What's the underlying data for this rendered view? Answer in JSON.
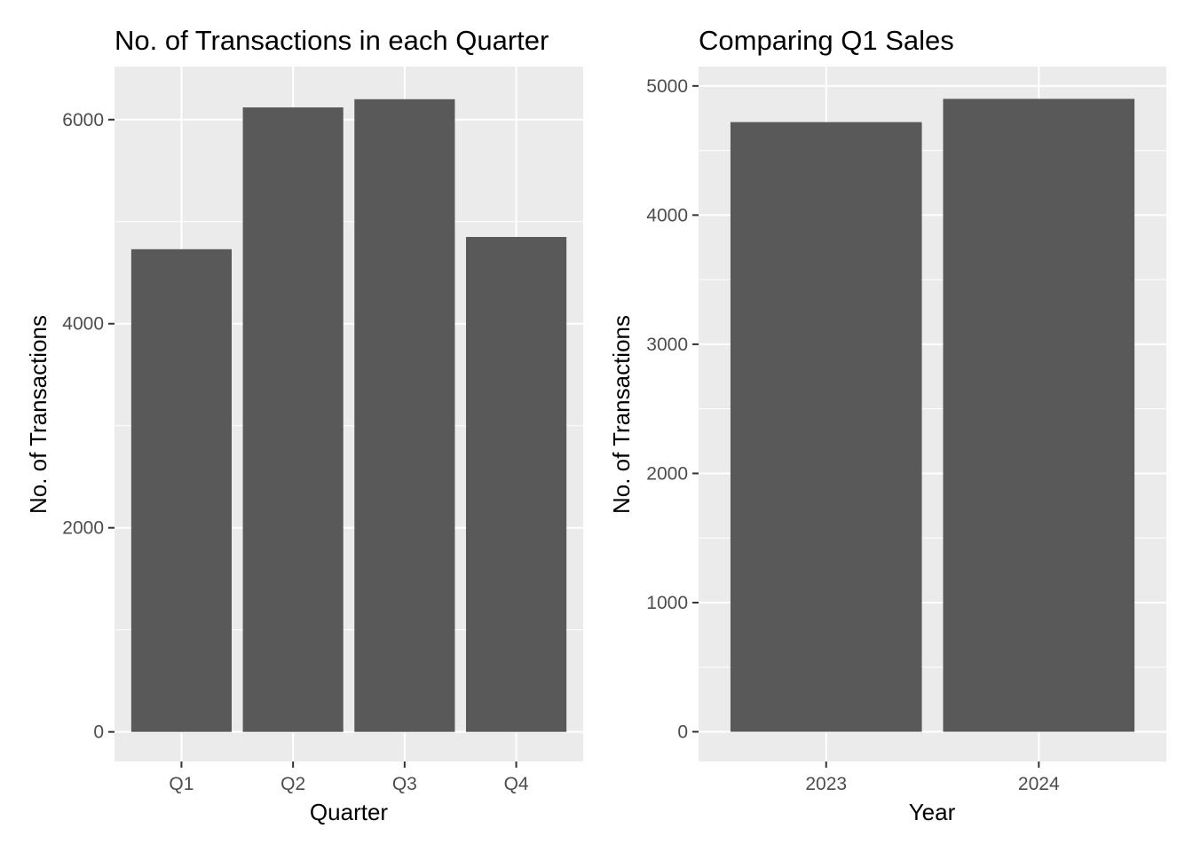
{
  "colors": {
    "panel_background": "#ebebeb",
    "grid_line": "#ffffff",
    "bar_fill": "#595959",
    "tick_text": "#4d4d4d",
    "tick_mark": "#333333",
    "title_text": "#000000"
  },
  "chart_data": [
    {
      "type": "bar",
      "title": "No. of Transactions in each Quarter",
      "xlabel": "Quarter",
      "ylabel": "No. of Transactions",
      "categories": [
        "Q1",
        "Q2",
        "Q3",
        "Q4"
      ],
      "values": [
        4730,
        6120,
        6200,
        4850
      ],
      "ylim": [
        -290,
        6520
      ],
      "yticks": [
        0,
        2000,
        4000,
        6000
      ],
      "ytick_labels": [
        "0",
        "2000",
        "4000",
        "6000"
      ],
      "y_minor_ticks": [
        1000,
        3000,
        5000
      ],
      "grid": true,
      "legend": "none"
    },
    {
      "type": "bar",
      "title": "Comparing Q1 Sales",
      "xlabel": "Year",
      "ylabel": "No. of Transactions",
      "categories": [
        "2023",
        "2024"
      ],
      "values": [
        4720,
        4900
      ],
      "ylim": [
        -230,
        5150
      ],
      "yticks": [
        0,
        1000,
        2000,
        3000,
        4000,
        5000
      ],
      "ytick_labels": [
        "0",
        "1000",
        "2000",
        "3000",
        "4000",
        "5000"
      ],
      "y_minor_ticks": [
        500,
        1500,
        2500,
        3500,
        4500
      ],
      "grid": true,
      "legend": "none"
    }
  ]
}
